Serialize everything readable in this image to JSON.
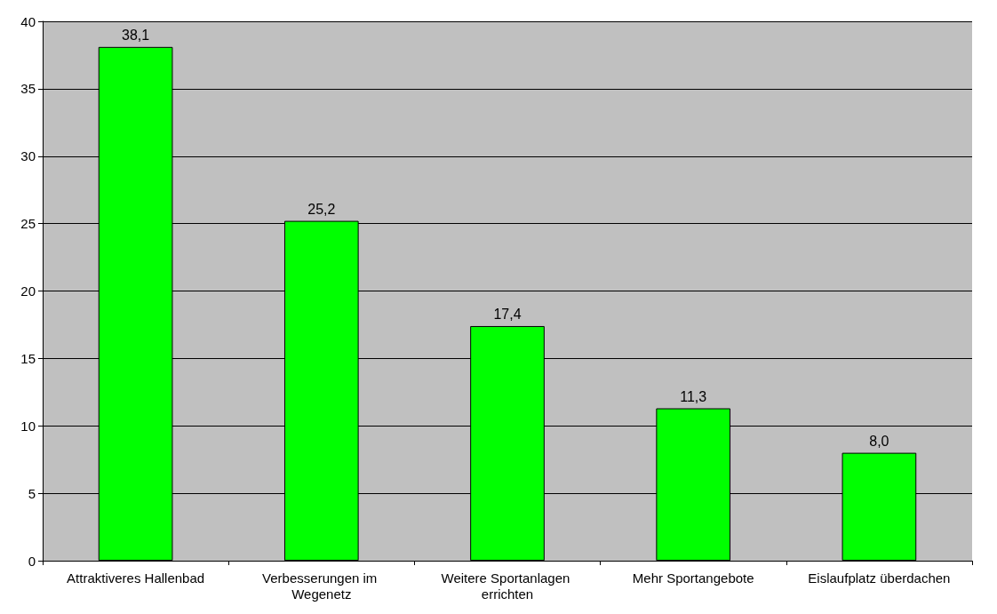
{
  "chart_data": {
    "type": "bar",
    "categories": [
      "Attraktiveres Hallenbad",
      "Verbesserungen im Wegenetz",
      "Weitere Sportanlagen errichten",
      "Mehr Sportangebote",
      "Eislaufplatz überdachen"
    ],
    "values": [
      38.1,
      25.2,
      17.4,
      11.3,
      8.0
    ],
    "value_labels": [
      "38,1",
      "25,2",
      "17,4",
      "11,3",
      "8,0"
    ],
    "color": "#00ff00",
    "ylim": [
      0,
      40
    ],
    "yticks": [
      0,
      5,
      10,
      15,
      20,
      25,
      30,
      35,
      40
    ],
    "grid": "y"
  }
}
